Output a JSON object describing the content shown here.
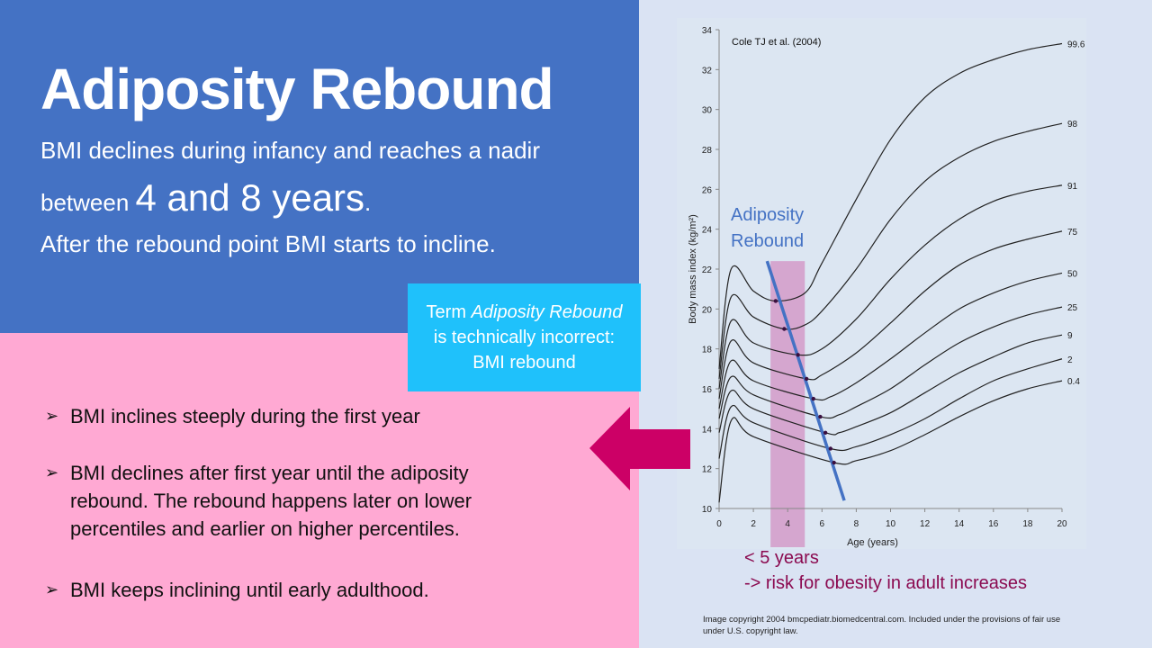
{
  "slide": {
    "title": "Adiposity Rebound",
    "intro_line1": "BMI declines during infancy and reaches a nadir",
    "intro_line2_pre": "between ",
    "intro_line2_big": "4 and 8 years",
    "intro_line2_post": ".",
    "intro_line3": "After the rebound point BMI starts to incline.",
    "callout_pre": "Term ",
    "callout_italic": "Adiposity Rebound",
    "callout_line2": "is technically incorrect:",
    "callout_line3": "BMI rebound",
    "bullets": [
      "BMI inclines steeply during the first year",
      "BMI declines after first year until the adiposity rebound. The rebound happens later on lower percentiles and earlier on higher percentiles.",
      "BMI keeps inclining until early adulthood."
    ],
    "bullet_marker": "➢",
    "note_line1": "< 5 years",
    "note_line2": "-> risk for obesity in adult increases",
    "copyright": "Image copyright 2004 bmcpediatr.biomedcentral.com. Included under the provisions of fair use under U.S. copyright law.",
    "colors": {
      "blue_panel": "#4472c4",
      "pink_panel": "#ffa9d3",
      "callout": "#1fc1fb",
      "arrow": "#cc0066",
      "rebound_line": "#4472c4",
      "highlight": "#d5a6cf",
      "note": "#8b0a50"
    }
  },
  "chart_data": {
    "type": "line",
    "source_label": "Cole TJ et al. (2004)",
    "xlabel": "Age (years)",
    "ylabel": "Body mass index (kg/m²)",
    "xlim": [
      0,
      20
    ],
    "ylim": [
      10,
      34
    ],
    "xticks": [
      0,
      2,
      4,
      6,
      8,
      10,
      12,
      14,
      16,
      18,
      20
    ],
    "yticks": [
      10,
      12,
      14,
      16,
      18,
      20,
      22,
      24,
      26,
      28,
      30,
      32,
      34
    ],
    "annotation": "Adiposity Rebound",
    "highlight_age_range": [
      3,
      5
    ],
    "rebound_line": {
      "from": [
        2.8,
        22.4
      ],
      "to": [
        7.3,
        10.4
      ]
    },
    "series": [
      {
        "name": "99.6",
        "x": [
          0,
          0.7,
          2,
          3.3,
          5,
          6,
          8,
          10,
          12,
          14,
          16,
          18,
          20
        ],
        "y": [
          17,
          22,
          20.9,
          20.4,
          20.8,
          22.3,
          25.5,
          28.5,
          30.6,
          31.8,
          32.5,
          33,
          33.3
        ],
        "rebound": [
          3.3,
          20.4
        ]
      },
      {
        "name": "98",
        "x": [
          0,
          0.7,
          2,
          3.8,
          5,
          6,
          8,
          10,
          12,
          14,
          16,
          18,
          20
        ],
        "y": [
          16.5,
          20.6,
          19.6,
          19,
          19.2,
          19.9,
          22,
          24.5,
          26.4,
          27.6,
          28.4,
          28.9,
          29.3
        ],
        "rebound": [
          3.8,
          19
        ]
      },
      {
        "name": "91",
        "x": [
          0,
          0.7,
          2,
          4.6,
          6,
          8,
          10,
          12,
          14,
          16,
          18,
          20
        ],
        "y": [
          16,
          19.4,
          18.3,
          17.7,
          18,
          19.5,
          21.5,
          23.2,
          24.5,
          25.4,
          25.9,
          26.2
        ],
        "rebound": [
          4.6,
          17.7
        ]
      },
      {
        "name": "75",
        "x": [
          0,
          0.7,
          2,
          5.1,
          6,
          8,
          10,
          12,
          14,
          16,
          18,
          20
        ],
        "y": [
          15.5,
          18.4,
          17.3,
          16.5,
          16.7,
          17.8,
          19.3,
          20.9,
          22.2,
          23,
          23.5,
          23.9
        ],
        "rebound": [
          5.1,
          16.5
        ]
      },
      {
        "name": "50",
        "x": [
          0,
          0.7,
          2,
          5.5,
          6.5,
          8,
          10,
          12,
          14,
          16,
          18,
          20
        ],
        "y": [
          15,
          17.4,
          16.4,
          15.5,
          15.6,
          16.3,
          17.5,
          18.8,
          20,
          20.8,
          21.4,
          21.8
        ],
        "rebound": [
          5.5,
          15.5
        ]
      },
      {
        "name": "25",
        "x": [
          0,
          0.7,
          2,
          5.9,
          7,
          8,
          10,
          12,
          14,
          16,
          18,
          20
        ],
        "y": [
          14.5,
          16.6,
          15.7,
          14.6,
          14.7,
          15.1,
          16,
          17.2,
          18.3,
          19.1,
          19.7,
          20.1
        ],
        "rebound": [
          5.9,
          14.6
        ]
      },
      {
        "name": "9",
        "x": [
          0,
          0.7,
          2,
          6.2,
          7,
          8,
          10,
          12,
          14,
          16,
          18,
          20
        ],
        "y": [
          13.8,
          15.9,
          15,
          13.8,
          13.8,
          14.1,
          14.8,
          15.8,
          16.8,
          17.6,
          18.3,
          18.7
        ],
        "rebound": [
          6.2,
          13.8
        ]
      },
      {
        "name": "2",
        "x": [
          0,
          0.7,
          2,
          6.5,
          8,
          10,
          12,
          14,
          16,
          18,
          20
        ],
        "y": [
          12.5,
          15.1,
          14.3,
          13,
          13.1,
          13.7,
          14.5,
          15.5,
          16.4,
          17,
          17.5
        ],
        "rebound": [
          6.5,
          13
        ]
      },
      {
        "name": "0.4",
        "x": [
          0,
          0.7,
          2,
          6.7,
          8,
          10,
          12,
          14,
          16,
          18,
          20
        ],
        "y": [
          10.3,
          14.4,
          13.6,
          12.3,
          12.4,
          12.9,
          13.7,
          14.6,
          15.4,
          16,
          16.4
        ],
        "rebound": [
          6.7,
          12.3
        ]
      }
    ]
  }
}
